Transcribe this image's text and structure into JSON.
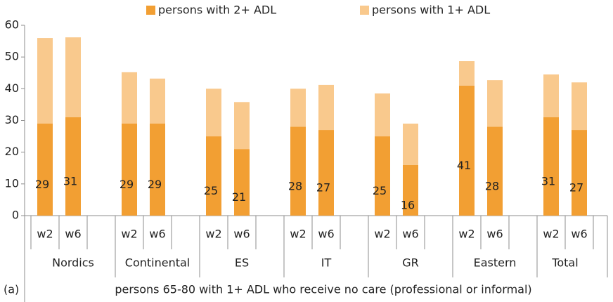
{
  "chart_data": {
    "type": "stacked_bar",
    "title": "persons 65-80 with 1+ ADL who receive no care (professional or informal)",
    "annotation": "(a)",
    "categories": [
      "w2",
      "w6",
      null,
      "w2",
      "w6",
      null,
      "w2",
      "w6",
      null,
      "w2",
      "w6",
      null,
      "w2",
      "w6",
      null,
      "w2",
      "w6",
      null,
      "w2",
      "w6"
    ],
    "groups": [
      "Nordics",
      "Continental",
      "ES",
      "IT",
      "GR",
      "Eastern",
      "Total"
    ],
    "series": [
      {
        "name": "persons with 2+ ADL",
        "color": "#f29f33",
        "values": [
          29,
          31,
          null,
          29,
          29,
          null,
          25,
          21,
          null,
          28,
          27,
          null,
          25,
          16,
          null,
          41,
          28,
          null,
          31,
          27
        ]
      },
      {
        "name": "persons with 1+ ADL",
        "color": "#f9c98d",
        "values": [
          27,
          25.2,
          null,
          16.2,
          14.2,
          null,
          15,
          14.8,
          null,
          12,
          14.2,
          null,
          13.5,
          13,
          null,
          7.7,
          14.7,
          null,
          13.5,
          15
        ]
      }
    ],
    "show_value_labels_for_series": 0,
    "ylim": [
      0,
      60
    ],
    "yticks": [
      0,
      10,
      20,
      30,
      40,
      50,
      60
    ],
    "grid": false,
    "legend": "top"
  }
}
